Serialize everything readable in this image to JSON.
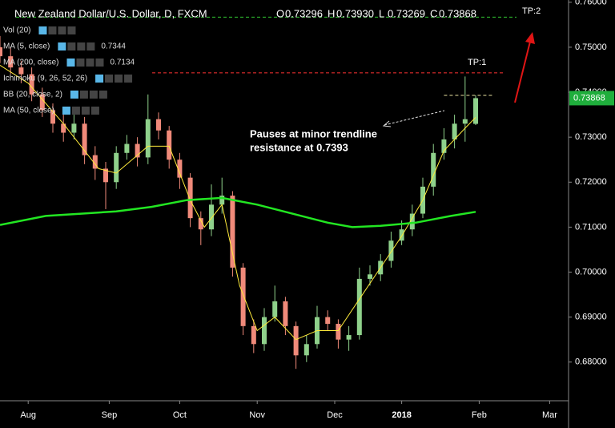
{
  "chart_data": {
    "type": "candlestick",
    "title": "New Zealand Dollar/U.S. Dollar, D, FXCM",
    "header_ohlc": [
      {
        "label": "O",
        "value": "0.73296"
      },
      {
        "label": "H",
        "value": "0.73930"
      },
      {
        "label": "L",
        "value": "0.73269"
      },
      {
        "label": "C",
        "value": "0.73868"
      }
    ],
    "up_color": "#8fd18b",
    "down_color": "#f08a7a",
    "x": [
      -8,
      -5,
      -2,
      1,
      4,
      7,
      10,
      13,
      16,
      19,
      22,
      25,
      28,
      31,
      34,
      37,
      40,
      43,
      46,
      49,
      52,
      55,
      58,
      61,
      64,
      67,
      70,
      73,
      76,
      79,
      82,
      85,
      88,
      91,
      94,
      97,
      100,
      103,
      106,
      109,
      112,
      115,
      118,
      121,
      124,
      127
    ],
    "open": [
      0.75,
      0.748,
      0.7455,
      0.744,
      0.7395,
      0.736,
      0.733,
      0.731,
      0.733,
      0.726,
      0.723,
      0.72,
      0.7265,
      0.7285,
      0.7255,
      0.734,
      0.7315,
      0.725,
      0.721,
      0.712,
      0.7095,
      0.715,
      0.717,
      0.701,
      0.688,
      0.684,
      0.69,
      0.6935,
      0.688,
      0.6815,
      0.684,
      0.69,
      0.6885,
      0.685,
      0.686,
      0.6985,
      0.6995,
      0.7025,
      0.707,
      0.7095,
      0.713,
      0.719,
      0.7265,
      0.7295,
      0.733,
      0.73296
    ],
    "high": [
      0.7525,
      0.75,
      0.747,
      0.7455,
      0.741,
      0.7375,
      0.735,
      0.735,
      0.7345,
      0.728,
      0.7245,
      0.728,
      0.7305,
      0.73,
      0.7395,
      0.7355,
      0.7325,
      0.7265,
      0.722,
      0.7135,
      0.7195,
      0.721,
      0.718,
      0.702,
      0.6895,
      0.692,
      0.697,
      0.6945,
      0.689,
      0.686,
      0.6925,
      0.6915,
      0.6895,
      0.688,
      0.701,
      0.7015,
      0.704,
      0.709,
      0.7115,
      0.715,
      0.721,
      0.7285,
      0.732,
      0.735,
      0.7435,
      0.7393
    ],
    "low": [
      0.7465,
      0.744,
      0.742,
      0.738,
      0.7345,
      0.731,
      0.729,
      0.7295,
      0.724,
      0.7205,
      0.714,
      0.7185,
      0.725,
      0.7235,
      0.724,
      0.7295,
      0.723,
      0.7185,
      0.71,
      0.706,
      0.708,
      0.713,
      0.699,
      0.686,
      0.682,
      0.6825,
      0.689,
      0.686,
      0.6785,
      0.68,
      0.683,
      0.687,
      0.683,
      0.6825,
      0.685,
      0.697,
      0.698,
      0.701,
      0.706,
      0.708,
      0.712,
      0.717,
      0.725,
      0.7275,
      0.729,
      0.73269
    ],
    "close": [
      0.748,
      0.7455,
      0.744,
      0.7395,
      0.736,
      0.733,
      0.731,
      0.733,
      0.726,
      0.723,
      0.72,
      0.7265,
      0.7285,
      0.7255,
      0.734,
      0.7315,
      0.725,
      0.721,
      0.712,
      0.7095,
      0.715,
      0.717,
      0.701,
      0.688,
      0.684,
      0.69,
      0.6935,
      0.688,
      0.6815,
      0.684,
      0.69,
      0.6885,
      0.685,
      0.686,
      0.6985,
      0.6995,
      0.7025,
      0.707,
      0.7095,
      0.713,
      0.719,
      0.7265,
      0.7295,
      0.733,
      0.734,
      0.73868
    ],
    "indicators": [
      {
        "name": "Vol (20)"
      },
      {
        "name": "MA (5, close)",
        "value": 0.7344,
        "color": "#ffeb3b",
        "x": [
          -8,
          0,
          10,
          20,
          25,
          34,
          40,
          46,
          50,
          55,
          60,
          65,
          70,
          76,
          82,
          88,
          94,
          100,
          106,
          112,
          118,
          124,
          127
        ],
        "values": [
          0.746,
          0.742,
          0.733,
          0.723,
          0.722,
          0.728,
          0.728,
          0.716,
          0.71,
          0.715,
          0.697,
          0.687,
          0.69,
          0.685,
          0.687,
          0.687,
          0.694,
          0.701,
          0.708,
          0.716,
          0.727,
          0.732,
          0.7344
        ]
      },
      {
        "name": "MA (200, close)",
        "value": 0.7134,
        "color": "#22e622",
        "x": [
          -8,
          5,
          15,
          25,
          35,
          45,
          55,
          65,
          75,
          85,
          92,
          100,
          110,
          120,
          127
        ],
        "values": [
          0.7105,
          0.7125,
          0.713,
          0.7135,
          0.7145,
          0.716,
          0.7165,
          0.715,
          0.713,
          0.711,
          0.71,
          0.7103,
          0.711,
          0.7125,
          0.7134
        ]
      },
      {
        "name": "Ichimoku (9, 26, 52, 26)"
      },
      {
        "name": "BB (20, close, 2)"
      },
      {
        "name": "MA (50, close)"
      }
    ],
    "levels": [
      {
        "label": "TP:1",
        "value": 0.7443,
        "color": "#ff3333"
      },
      {
        "label": "TP:2",
        "value": 0.7567,
        "color": "#33cc33"
      }
    ],
    "trendline": {
      "value": 0.7393,
      "x": [
        118,
        132
      ],
      "color": "#e8e0a0"
    },
    "annotation": [
      "Pauses at minor trendline",
      "resistance at 0.7393"
    ],
    "price_tag_color": "#1fae3c",
    "xlim": [
      -8,
      153.36
    ],
    "xticks": [
      {
        "value": 0,
        "label": "Aug"
      },
      {
        "value": 23,
        "label": "Sep"
      },
      {
        "value": 43,
        "label": "Oct"
      },
      {
        "value": 65,
        "label": "Nov"
      },
      {
        "value": 87,
        "label": "Dec"
      },
      {
        "value": 106,
        "label": "2018"
      },
      {
        "value": 128,
        "label": "Feb"
      },
      {
        "value": 148,
        "label": "Mar"
      }
    ],
    "ylim": [
      0.6714,
      0.7605
    ],
    "yticks": [
      {
        "value": 0.68,
        "label": "0.68000"
      },
      {
        "value": 0.69,
        "label": "0.69000"
      },
      {
        "value": 0.7,
        "label": "0.70000"
      },
      {
        "value": 0.71,
        "label": "0.71000"
      },
      {
        "value": 0.72,
        "label": "0.72000"
      },
      {
        "value": 0.73,
        "label": "0.73000"
      },
      {
        "value": 0.74,
        "label": "0.74000"
      },
      {
        "value": 0.75,
        "label": "0.75000"
      },
      {
        "value": 0.76,
        "label": "0.76000"
      }
    ]
  }
}
